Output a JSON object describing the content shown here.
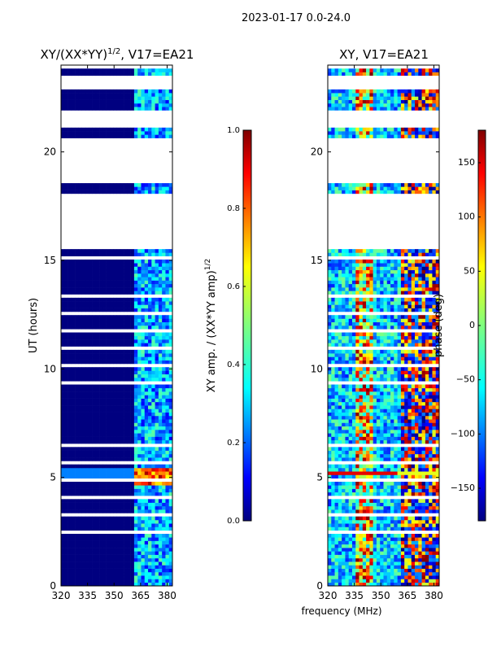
{
  "suptitle": "2023-01-17 0.0-24.0",
  "chart_data": [
    {
      "type": "heatmap",
      "title": "XY/(XX*YY)",
      "title_exp": "1/2",
      "title_suffix": ", V17=EA21",
      "xlabel": "",
      "ylabel": "UT (hours)",
      "xlim": [
        320,
        383
      ],
      "ylim": [
        0,
        24
      ],
      "xticks": [
        320,
        335,
        350,
        365,
        380
      ],
      "yticks": [
        0,
        5,
        10,
        15,
        20
      ],
      "colorbar": {
        "label": "XY amp. / (XX*YY amp)",
        "label_exp": "1/2",
        "range": [
          0.0,
          1.0
        ],
        "ticks": [
          "0.0",
          "0.2",
          "0.4",
          "0.6",
          "0.8",
          "1.0"
        ],
        "tick_values": [
          0.0,
          0.2,
          0.4,
          0.6,
          0.8,
          1.0
        ]
      },
      "valid_channels_mhz": [
        362,
        383
      ],
      "gaps_ut_hours": [
        [
          15.6,
          18.1
        ],
        [
          18.8,
          20.6
        ],
        [
          21.2,
          21.9
        ],
        [
          22.8,
          23.5
        ]
      ]
    },
    {
      "type": "heatmap",
      "title": "XY, V17=EA21",
      "xlabel": "frequency (MHz)",
      "ylabel": "",
      "xlim": [
        320,
        383
      ],
      "ylim": [
        0,
        24
      ],
      "xticks": [
        320,
        335,
        350,
        365,
        380
      ],
      "yticks": [
        0,
        5,
        10,
        15,
        20
      ],
      "colorbar": {
        "label": "phase (deg)",
        "range": [
          -180,
          180
        ],
        "ticks": [
          "150",
          "100",
          "50",
          "0",
          "−50",
          "−100",
          "−150"
        ],
        "tick_values": [
          150,
          100,
          50,
          0,
          -50,
          -100,
          -150
        ]
      },
      "gaps_ut_hours": [
        [
          15.6,
          18.1
        ],
        [
          18.8,
          20.6
        ],
        [
          21.2,
          21.9
        ],
        [
          22.8,
          23.5
        ]
      ]
    }
  ]
}
